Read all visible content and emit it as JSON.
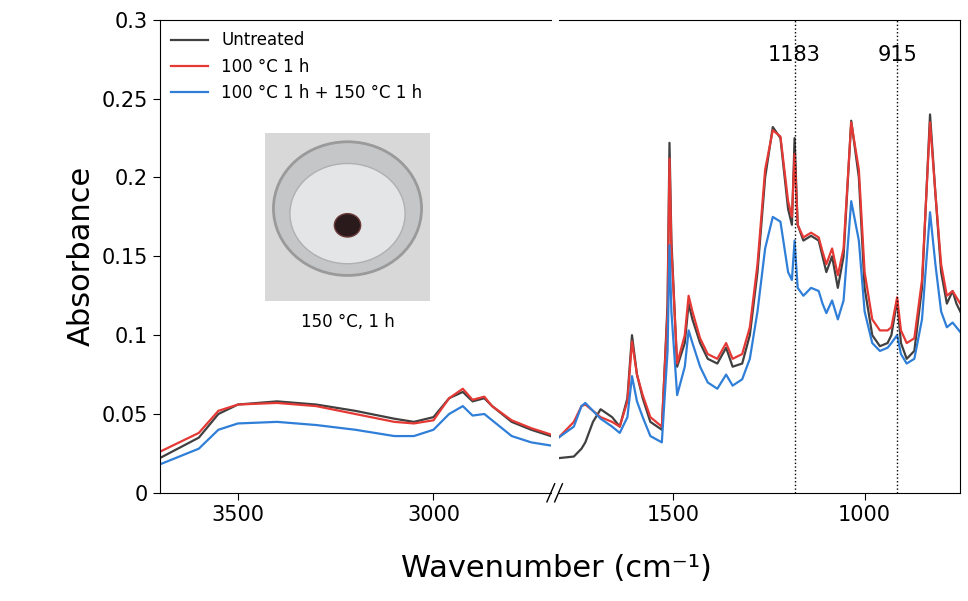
{
  "chart_data": [
    {
      "type": "line",
      "y_label": "Absorbance",
      "xlim": [
        3700,
        2700
      ],
      "xticks": [
        3500,
        3000
      ],
      "ylim": [
        0,
        0.3
      ],
      "yticks": [
        0,
        0.05,
        0.1,
        0.15,
        0.2,
        0.25,
        0.3
      ],
      "legend": "upper left",
      "x": [
        3700,
        3600,
        3550,
        3500,
        3400,
        3300,
        3200,
        3100,
        3050,
        3000,
        2960,
        2925,
        2900,
        2870,
        2850,
        2800,
        2750,
        2700
      ],
      "series": [
        {
          "name": "Untreated",
          "color": "#404040",
          "values": [
            0.022,
            0.035,
            0.05,
            0.056,
            0.058,
            0.056,
            0.052,
            0.047,
            0.045,
            0.048,
            0.06,
            0.064,
            0.058,
            0.06,
            0.055,
            0.045,
            0.04,
            0.036
          ]
        },
        {
          "name": "100 °C 1 h",
          "color": "#e53935",
          "values": [
            0.026,
            0.038,
            0.052,
            0.056,
            0.057,
            0.055,
            0.05,
            0.045,
            0.044,
            0.046,
            0.06,
            0.066,
            0.059,
            0.061,
            0.055,
            0.046,
            0.041,
            0.037
          ]
        },
        {
          "name": "100 °C 1 h + 150 °C 1 h",
          "color": "#2f7fd8",
          "values": [
            0.018,
            0.028,
            0.04,
            0.044,
            0.045,
            0.043,
            0.04,
            0.036,
            0.036,
            0.04,
            0.05,
            0.055,
            0.049,
            0.05,
            0.046,
            0.036,
            0.032,
            0.03
          ]
        }
      ]
    },
    {
      "type": "line",
      "x_label": "Wavenumber (cm⁻¹)",
      "tick_labels": "x",
      "xlim": [
        1800,
        750
      ],
      "xticks": [
        1500,
        1000
      ],
      "ylim": [
        0,
        0.3
      ],
      "annotations": [
        {
          "x": 1183,
          "text": "1183"
        },
        {
          "x": 915,
          "text": "915"
        },
        {
          "text": "150 °C, 1 h"
        }
      ],
      "x": [
        1800,
        1760,
        1740,
        1730,
        1710,
        1690,
        1660,
        1640,
        1620,
        1608,
        1595,
        1580,
        1560,
        1530,
        1515,
        1510,
        1505,
        1490,
        1470,
        1460,
        1450,
        1430,
        1410,
        1385,
        1362,
        1345,
        1320,
        1300,
        1280,
        1260,
        1240,
        1220,
        1200,
        1190,
        1183,
        1175,
        1160,
        1140,
        1120,
        1110,
        1100,
        1085,
        1070,
        1055,
        1035,
        1015,
        1000,
        980,
        960,
        940,
        930,
        915,
        905,
        890,
        870,
        850,
        829,
        815,
        800,
        785,
        770,
        760,
        750
      ],
      "series": [
        {
          "name": "Untreated",
          "color": "#404040",
          "values": [
            0.022,
            0.023,
            0.028,
            0.032,
            0.045,
            0.053,
            0.048,
            0.042,
            0.06,
            0.1,
            0.075,
            0.06,
            0.045,
            0.04,
            0.12,
            0.222,
            0.16,
            0.08,
            0.095,
            0.12,
            0.11,
            0.095,
            0.085,
            0.082,
            0.092,
            0.08,
            0.082,
            0.1,
            0.14,
            0.2,
            0.232,
            0.225,
            0.18,
            0.17,
            0.225,
            0.17,
            0.16,
            0.163,
            0.16,
            0.15,
            0.14,
            0.15,
            0.13,
            0.15,
            0.236,
            0.2,
            0.13,
            0.1,
            0.093,
            0.095,
            0.1,
            0.122,
            0.095,
            0.085,
            0.09,
            0.13,
            0.24,
            0.19,
            0.14,
            0.12,
            0.128,
            0.12,
            0.115
          ]
        },
        {
          "name": "100 °C 1 h",
          "color": "#e53935",
          "values": [
            0.035,
            0.045,
            0.055,
            0.056,
            0.052,
            0.048,
            0.045,
            0.042,
            0.058,
            0.096,
            0.075,
            0.062,
            0.048,
            0.042,
            0.115,
            0.212,
            0.155,
            0.082,
            0.1,
            0.125,
            0.115,
            0.098,
            0.088,
            0.085,
            0.095,
            0.085,
            0.088,
            0.105,
            0.145,
            0.205,
            0.23,
            0.226,
            0.185,
            0.175,
            0.215,
            0.17,
            0.162,
            0.165,
            0.162,
            0.153,
            0.145,
            0.155,
            0.138,
            0.155,
            0.235,
            0.205,
            0.14,
            0.11,
            0.103,
            0.103,
            0.105,
            0.124,
            0.103,
            0.095,
            0.098,
            0.135,
            0.235,
            0.19,
            0.145,
            0.125,
            0.128,
            0.124,
            0.12
          ]
        },
        {
          "name": "100 °C 1 h + 150 °C 1 h",
          "color": "#2f7fd8",
          "values": [
            0.035,
            0.042,
            0.055,
            0.057,
            0.052,
            0.047,
            0.042,
            0.038,
            0.048,
            0.074,
            0.058,
            0.048,
            0.036,
            0.032,
            0.09,
            0.157,
            0.115,
            0.062,
            0.08,
            0.103,
            0.095,
            0.08,
            0.07,
            0.066,
            0.075,
            0.068,
            0.072,
            0.085,
            0.115,
            0.155,
            0.175,
            0.172,
            0.14,
            0.135,
            0.16,
            0.13,
            0.125,
            0.13,
            0.128,
            0.12,
            0.114,
            0.122,
            0.11,
            0.122,
            0.185,
            0.16,
            0.115,
            0.095,
            0.09,
            0.092,
            0.095,
            0.1,
            0.088,
            0.082,
            0.085,
            0.11,
            0.178,
            0.145,
            0.115,
            0.105,
            0.108,
            0.105,
            0.102
          ]
        }
      ]
    }
  ]
}
